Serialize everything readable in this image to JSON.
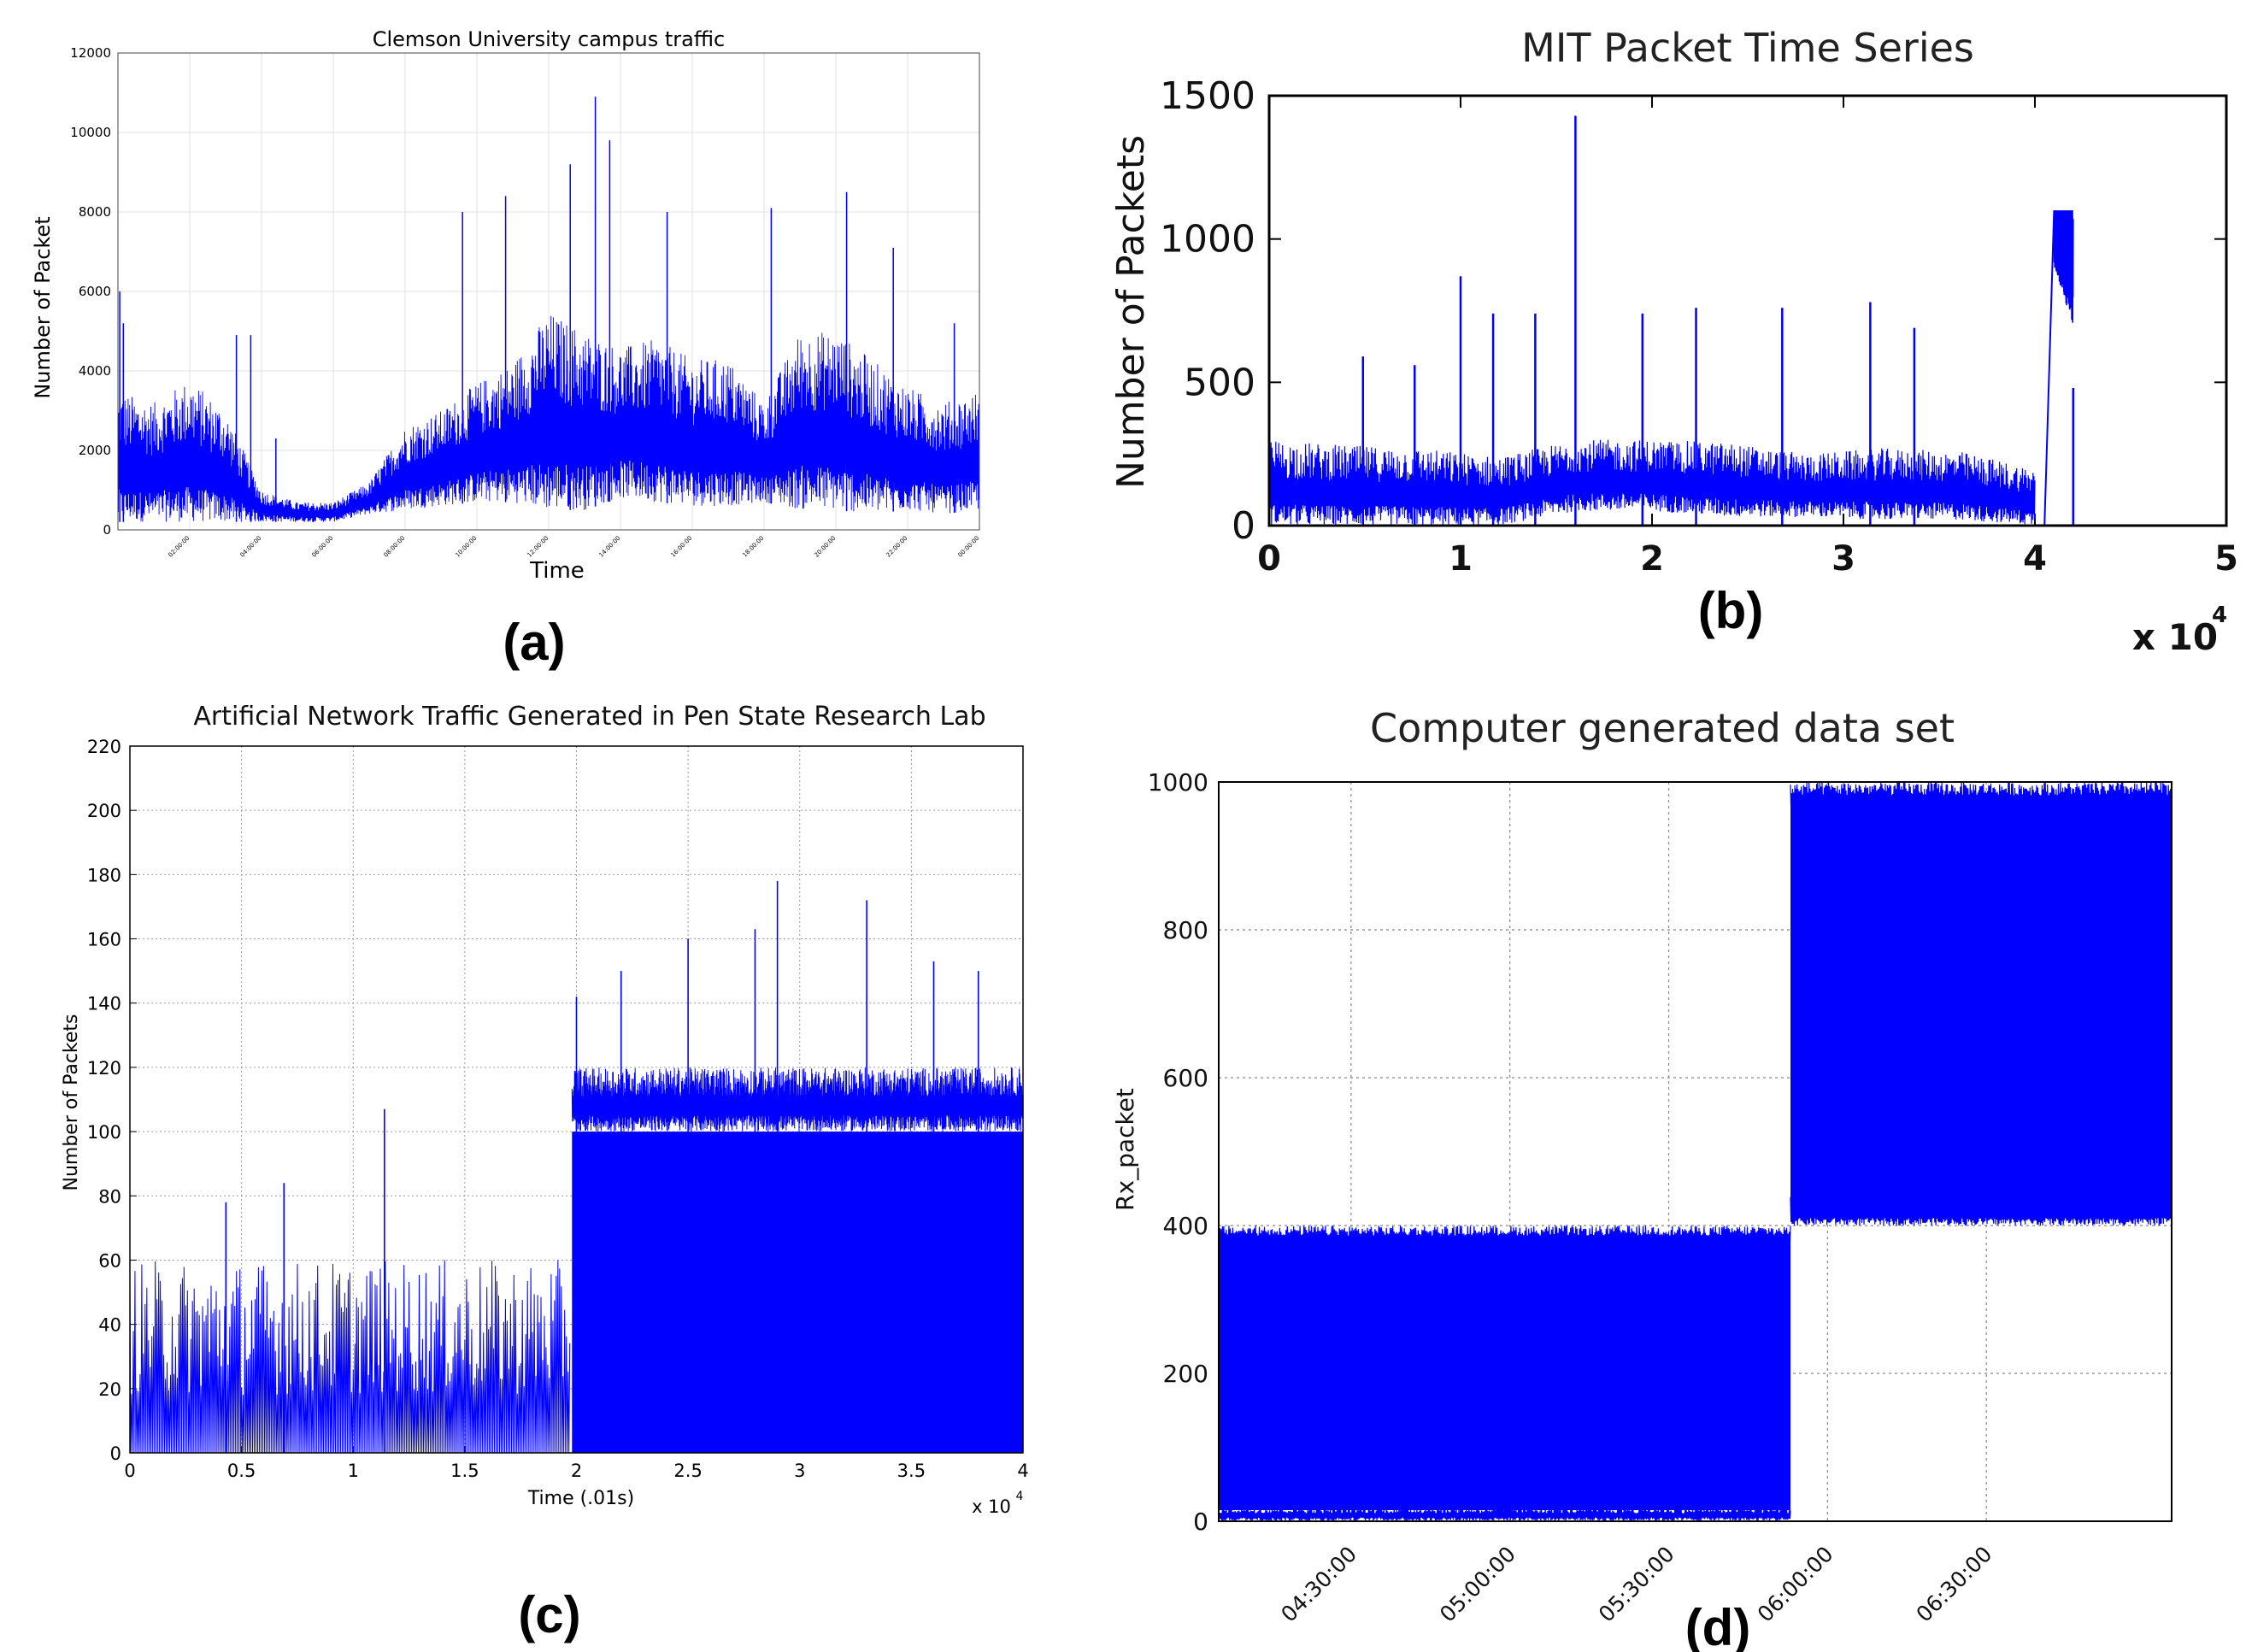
{
  "figure": {
    "panel_labels": [
      "(a)",
      "(b)",
      "(c)",
      "(d)"
    ]
  },
  "chart_data": [
    {
      "type": "line",
      "title": "Clemson University campus traffic",
      "xlabel": "Time",
      "ylabel": "Number of Packet",
      "ylim": [
        0,
        12000
      ],
      "yticks": [
        0,
        2000,
        4000,
        6000,
        8000,
        10000,
        12000
      ],
      "xticks": [
        "02:00:00",
        "04:00:00",
        "06:00:00",
        "08:00:00",
        "10:00:00",
        "12:00:00",
        "14:00:00",
        "16:00:00",
        "18:00:00",
        "20:00:00",
        "22:00:00",
        "00:00:00"
      ],
      "grid": true,
      "color": "#0000ff",
      "envelope_hours": [
        0,
        1,
        2,
        3,
        4,
        5,
        6,
        7,
        8,
        9,
        10,
        11,
        12,
        13,
        14,
        15,
        16,
        17,
        18,
        19,
        20,
        21,
        22,
        23,
        24
      ],
      "upper": [
        3500,
        3200,
        3800,
        3000,
        1000,
        700,
        700,
        1200,
        2600,
        3000,
        3700,
        4200,
        5500,
        5000,
        4600,
        4800,
        4300,
        4300,
        3200,
        5000,
        5000,
        4300,
        3600,
        3200,
        3500
      ],
      "lower": [
        200,
        200,
        200,
        200,
        200,
        200,
        200,
        400,
        500,
        600,
        700,
        700,
        500,
        500,
        800,
        700,
        600,
        600,
        700,
        500,
        500,
        400,
        500,
        400,
        500
      ],
      "spikes": [
        [
          0.05,
          6000
        ],
        [
          0.15,
          5200
        ],
        [
          3.3,
          4900
        ],
        [
          3.7,
          4900
        ],
        [
          4.4,
          2300
        ],
        [
          9.6,
          8000
        ],
        [
          10.8,
          8400
        ],
        [
          12.6,
          9200
        ],
        [
          13.3,
          10900
        ],
        [
          13.7,
          9800
        ],
        [
          15.3,
          8000
        ],
        [
          18.2,
          8100
        ],
        [
          20.3,
          8500
        ],
        [
          21.6,
          7100
        ],
        [
          23.3,
          5200
        ]
      ]
    },
    {
      "type": "line",
      "title": "MIT Packet Time Series",
      "xlabel": "",
      "ylabel": "Number of Packets",
      "ylim": [
        0,
        1500
      ],
      "xlim": [
        0,
        50000
      ],
      "yticks": [
        0,
        500,
        1000,
        1500
      ],
      "xticks": [
        "0",
        "1",
        "2",
        "3",
        "4",
        "5"
      ],
      "x_multiplier": "x 10",
      "x_multiplier_exp": "4",
      "grid": false,
      "color": "#0000ff",
      "envelope_x": [
        0,
        4000,
        8000,
        12000,
        16000,
        20000,
        24000,
        28000,
        32000,
        36000,
        40000,
        40500,
        41000,
        41500,
        42000
      ],
      "upper": [
        300,
        280,
        270,
        240,
        300,
        300,
        290,
        250,
        270,
        260,
        200,
        0,
        1100,
        1100,
        1100
      ],
      "lower": [
        0,
        0,
        0,
        0,
        50,
        50,
        30,
        30,
        20,
        20,
        0,
        0,
        900,
        800,
        700
      ],
      "spikes": [
        [
          4900,
          590
        ],
        [
          7600,
          560
        ],
        [
          10000,
          870
        ],
        [
          11700,
          740
        ],
        [
          13900,
          740
        ],
        [
          16000,
          1430
        ],
        [
          19500,
          740
        ],
        [
          22300,
          760
        ],
        [
          26800,
          760
        ],
        [
          31400,
          780
        ],
        [
          33700,
          690
        ],
        [
          42000,
          480
        ]
      ]
    },
    {
      "type": "line",
      "title": "Artificial Network Traffic Generated in Pen State Research Lab",
      "xlabel": "Time (.01s)",
      "ylabel": "Number of Packets",
      "ylim": [
        0,
        220
      ],
      "xlim": [
        0,
        40000
      ],
      "yticks": [
        0,
        20,
        40,
        60,
        80,
        100,
        120,
        140,
        160,
        180,
        200,
        220
      ],
      "xticks": [
        "0",
        "0.5",
        "1",
        "1.5",
        "2",
        "2.5",
        "3",
        "3.5",
        "4"
      ],
      "x_multiplier": "x 10",
      "x_multiplier_exp": "4",
      "grid": true,
      "color": "#0000ff",
      "envelope_x": [
        0,
        19700,
        19800,
        40000
      ],
      "upper": [
        60,
        60,
        120,
        120
      ],
      "lower": [
        0,
        0,
        0,
        0
      ],
      "spikes": [
        [
          4300,
          78
        ],
        [
          6900,
          84
        ],
        [
          11400,
          107
        ],
        [
          20000,
          142
        ],
        [
          22000,
          150
        ],
        [
          25000,
          160
        ],
        [
          28000,
          163
        ],
        [
          29000,
          178
        ],
        [
          33000,
          172
        ],
        [
          36000,
          153
        ],
        [
          38000,
          150
        ]
      ]
    },
    {
      "type": "line",
      "title": "Computer generated data set",
      "xlabel": "",
      "ylabel": "Rx_packet",
      "ylim": [
        0,
        1000
      ],
      "xlim": [
        "04:05:00",
        "07:05:00"
      ],
      "yticks": [
        0,
        200,
        400,
        600,
        800,
        1000
      ],
      "xticks": [
        "04:30:00",
        "05:00:00",
        "05:30:00",
        "06:00:00",
        "06:30:00"
      ],
      "xtick_minutes": [
        25,
        55,
        85,
        115,
        145
      ],
      "change_minute": 108,
      "grid": true,
      "color": "#0000ff",
      "segments": [
        {
          "from": "04:05:00",
          "to": "05:53:00",
          "min": 0,
          "max": 400
        },
        {
          "from": "05:53:00",
          "to": "07:05:00",
          "min": 400,
          "max": 1000
        }
      ]
    }
  ]
}
